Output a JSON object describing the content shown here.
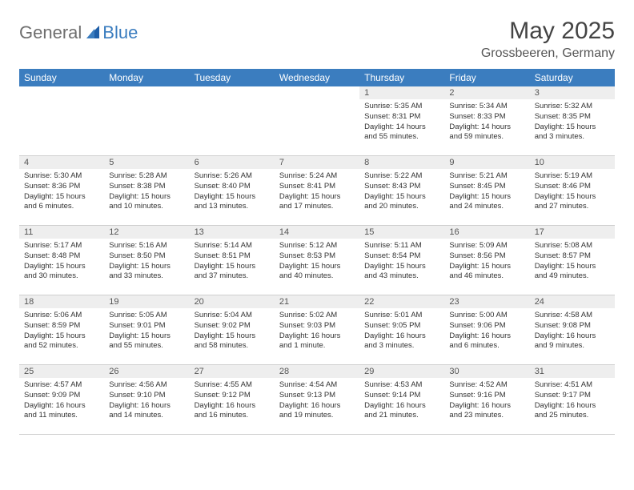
{
  "brand": {
    "part1": "General",
    "part2": "Blue"
  },
  "title": "May 2025",
  "location": "Grossbeeren, Germany",
  "weekday_header_bg": "#3b7dbf",
  "weekdays": [
    "Sunday",
    "Monday",
    "Tuesday",
    "Wednesday",
    "Thursday",
    "Friday",
    "Saturday"
  ],
  "weeks": [
    [
      {
        "n": "",
        "sr": "",
        "ss": "",
        "dl": ""
      },
      {
        "n": "",
        "sr": "",
        "ss": "",
        "dl": ""
      },
      {
        "n": "",
        "sr": "",
        "ss": "",
        "dl": ""
      },
      {
        "n": "",
        "sr": "",
        "ss": "",
        "dl": ""
      },
      {
        "n": "1",
        "sr": "Sunrise: 5:35 AM",
        "ss": "Sunset: 8:31 PM",
        "dl": "Daylight: 14 hours and 55 minutes."
      },
      {
        "n": "2",
        "sr": "Sunrise: 5:34 AM",
        "ss": "Sunset: 8:33 PM",
        "dl": "Daylight: 14 hours and 59 minutes."
      },
      {
        "n": "3",
        "sr": "Sunrise: 5:32 AM",
        "ss": "Sunset: 8:35 PM",
        "dl": "Daylight: 15 hours and 3 minutes."
      }
    ],
    [
      {
        "n": "4",
        "sr": "Sunrise: 5:30 AM",
        "ss": "Sunset: 8:36 PM",
        "dl": "Daylight: 15 hours and 6 minutes."
      },
      {
        "n": "5",
        "sr": "Sunrise: 5:28 AM",
        "ss": "Sunset: 8:38 PM",
        "dl": "Daylight: 15 hours and 10 minutes."
      },
      {
        "n": "6",
        "sr": "Sunrise: 5:26 AM",
        "ss": "Sunset: 8:40 PM",
        "dl": "Daylight: 15 hours and 13 minutes."
      },
      {
        "n": "7",
        "sr": "Sunrise: 5:24 AM",
        "ss": "Sunset: 8:41 PM",
        "dl": "Daylight: 15 hours and 17 minutes."
      },
      {
        "n": "8",
        "sr": "Sunrise: 5:22 AM",
        "ss": "Sunset: 8:43 PM",
        "dl": "Daylight: 15 hours and 20 minutes."
      },
      {
        "n": "9",
        "sr": "Sunrise: 5:21 AM",
        "ss": "Sunset: 8:45 PM",
        "dl": "Daylight: 15 hours and 24 minutes."
      },
      {
        "n": "10",
        "sr": "Sunrise: 5:19 AM",
        "ss": "Sunset: 8:46 PM",
        "dl": "Daylight: 15 hours and 27 minutes."
      }
    ],
    [
      {
        "n": "11",
        "sr": "Sunrise: 5:17 AM",
        "ss": "Sunset: 8:48 PM",
        "dl": "Daylight: 15 hours and 30 minutes."
      },
      {
        "n": "12",
        "sr": "Sunrise: 5:16 AM",
        "ss": "Sunset: 8:50 PM",
        "dl": "Daylight: 15 hours and 33 minutes."
      },
      {
        "n": "13",
        "sr": "Sunrise: 5:14 AM",
        "ss": "Sunset: 8:51 PM",
        "dl": "Daylight: 15 hours and 37 minutes."
      },
      {
        "n": "14",
        "sr": "Sunrise: 5:12 AM",
        "ss": "Sunset: 8:53 PM",
        "dl": "Daylight: 15 hours and 40 minutes."
      },
      {
        "n": "15",
        "sr": "Sunrise: 5:11 AM",
        "ss": "Sunset: 8:54 PM",
        "dl": "Daylight: 15 hours and 43 minutes."
      },
      {
        "n": "16",
        "sr": "Sunrise: 5:09 AM",
        "ss": "Sunset: 8:56 PM",
        "dl": "Daylight: 15 hours and 46 minutes."
      },
      {
        "n": "17",
        "sr": "Sunrise: 5:08 AM",
        "ss": "Sunset: 8:57 PM",
        "dl": "Daylight: 15 hours and 49 minutes."
      }
    ],
    [
      {
        "n": "18",
        "sr": "Sunrise: 5:06 AM",
        "ss": "Sunset: 8:59 PM",
        "dl": "Daylight: 15 hours and 52 minutes."
      },
      {
        "n": "19",
        "sr": "Sunrise: 5:05 AM",
        "ss": "Sunset: 9:01 PM",
        "dl": "Daylight: 15 hours and 55 minutes."
      },
      {
        "n": "20",
        "sr": "Sunrise: 5:04 AM",
        "ss": "Sunset: 9:02 PM",
        "dl": "Daylight: 15 hours and 58 minutes."
      },
      {
        "n": "21",
        "sr": "Sunrise: 5:02 AM",
        "ss": "Sunset: 9:03 PM",
        "dl": "Daylight: 16 hours and 1 minute."
      },
      {
        "n": "22",
        "sr": "Sunrise: 5:01 AM",
        "ss": "Sunset: 9:05 PM",
        "dl": "Daylight: 16 hours and 3 minutes."
      },
      {
        "n": "23",
        "sr": "Sunrise: 5:00 AM",
        "ss": "Sunset: 9:06 PM",
        "dl": "Daylight: 16 hours and 6 minutes."
      },
      {
        "n": "24",
        "sr": "Sunrise: 4:58 AM",
        "ss": "Sunset: 9:08 PM",
        "dl": "Daylight: 16 hours and 9 minutes."
      }
    ],
    [
      {
        "n": "25",
        "sr": "Sunrise: 4:57 AM",
        "ss": "Sunset: 9:09 PM",
        "dl": "Daylight: 16 hours and 11 minutes."
      },
      {
        "n": "26",
        "sr": "Sunrise: 4:56 AM",
        "ss": "Sunset: 9:10 PM",
        "dl": "Daylight: 16 hours and 14 minutes."
      },
      {
        "n": "27",
        "sr": "Sunrise: 4:55 AM",
        "ss": "Sunset: 9:12 PM",
        "dl": "Daylight: 16 hours and 16 minutes."
      },
      {
        "n": "28",
        "sr": "Sunrise: 4:54 AM",
        "ss": "Sunset: 9:13 PM",
        "dl": "Daylight: 16 hours and 19 minutes."
      },
      {
        "n": "29",
        "sr": "Sunrise: 4:53 AM",
        "ss": "Sunset: 9:14 PM",
        "dl": "Daylight: 16 hours and 21 minutes."
      },
      {
        "n": "30",
        "sr": "Sunrise: 4:52 AM",
        "ss": "Sunset: 9:16 PM",
        "dl": "Daylight: 16 hours and 23 minutes."
      },
      {
        "n": "31",
        "sr": "Sunrise: 4:51 AM",
        "ss": "Sunset: 9:17 PM",
        "dl": "Daylight: 16 hours and 25 minutes."
      }
    ]
  ]
}
